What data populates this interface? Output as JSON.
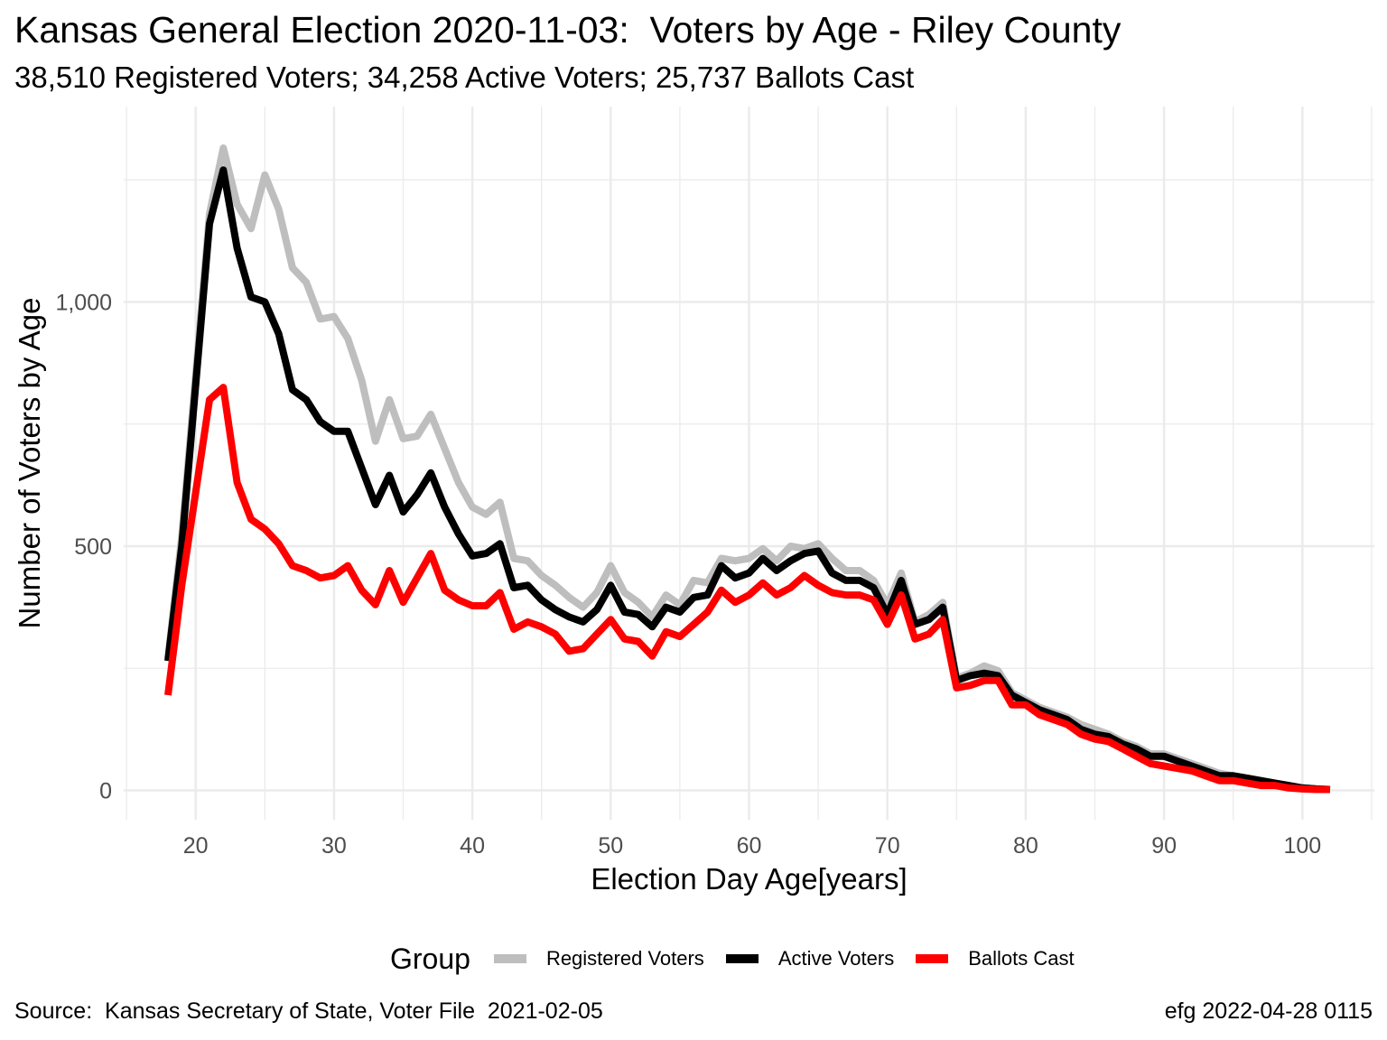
{
  "title": "Kansas General Election 2020-11-03:  Voters by Age - Riley County",
  "subtitle": "38,510 Registered Voters; 34,258 Active Voters; 25,737 Ballots Cast",
  "caption_left": "Source:  Kansas Secretary of State, Voter File  2021-02-05",
  "caption_right": "efg 2022-04-28 0115",
  "legend_title": "Group",
  "colors": {
    "registered": "#bebebe",
    "active": "#000000",
    "ballots": "#ff0000",
    "grid": "#ebebeb",
    "tick_text": "#4d4d4d"
  },
  "chart_data": {
    "type": "line",
    "xlabel": "Election Day Age[years]",
    "ylabel": "Number of Voters by Age",
    "xlim": [
      14.8,
      105.2
    ],
    "ylim": [
      -60,
      1400
    ],
    "x_ticks": [
      20,
      30,
      40,
      50,
      60,
      70,
      80,
      90,
      100
    ],
    "x_tick_labels": [
      "20",
      "30",
      "40",
      "50",
      "60",
      "70",
      "80",
      "90",
      "100"
    ],
    "y_ticks": [
      0,
      500,
      1000
    ],
    "y_tick_labels": [
      "0",
      "500",
      "1,000"
    ],
    "grid": true,
    "legend_position": "bottom",
    "x": [
      18,
      19,
      20,
      21,
      22,
      23,
      24,
      25,
      26,
      27,
      28,
      29,
      30,
      31,
      32,
      33,
      34,
      35,
      36,
      37,
      38,
      39,
      40,
      41,
      42,
      43,
      44,
      45,
      46,
      47,
      48,
      49,
      50,
      51,
      52,
      53,
      54,
      55,
      56,
      57,
      58,
      59,
      60,
      61,
      62,
      63,
      64,
      65,
      66,
      67,
      68,
      69,
      70,
      71,
      72,
      73,
      74,
      75,
      76,
      77,
      78,
      79,
      80,
      81,
      82,
      83,
      84,
      85,
      86,
      87,
      88,
      89,
      90,
      91,
      92,
      93,
      94,
      95,
      96,
      97,
      98,
      99,
      100,
      101,
      102
    ],
    "series": [
      {
        "name": "Registered Voters",
        "color": "#bebebe",
        "values": [
          270,
          520,
          850,
          1180,
          1315,
          1200,
          1150,
          1260,
          1190,
          1070,
          1040,
          965,
          970,
          925,
          840,
          715,
          800,
          720,
          725,
          770,
          700,
          630,
          580,
          565,
          590,
          475,
          470,
          440,
          420,
          395,
          375,
          405,
          460,
          405,
          385,
          355,
          400,
          380,
          430,
          425,
          475,
          470,
          475,
          495,
          470,
          500,
          495,
          505,
          475,
          450,
          450,
          430,
          380,
          445,
          345,
          360,
          385,
          230,
          240,
          255,
          245,
          200,
          185,
          170,
          160,
          150,
          135,
          125,
          115,
          100,
          90,
          75,
          75,
          65,
          55,
          45,
          35,
          30,
          25,
          20,
          15,
          10,
          5,
          3,
          2
        ]
      },
      {
        "name": "Active Voters",
        "color": "#000000",
        "values": [
          265,
          500,
          830,
          1160,
          1270,
          1110,
          1010,
          1000,
          935,
          820,
          800,
          755,
          735,
          735,
          660,
          585,
          645,
          570,
          605,
          650,
          580,
          525,
          480,
          485,
          505,
          415,
          420,
          390,
          370,
          355,
          345,
          370,
          420,
          365,
          360,
          335,
          375,
          365,
          395,
          400,
          460,
          435,
          445,
          475,
          450,
          470,
          485,
          490,
          445,
          430,
          430,
          415,
          360,
          430,
          340,
          350,
          375,
          225,
          235,
          240,
          235,
          195,
          180,
          165,
          155,
          145,
          125,
          115,
          110,
          95,
          85,
          70,
          70,
          60,
          50,
          40,
          30,
          30,
          25,
          20,
          15,
          10,
          5,
          3,
          2
        ]
      },
      {
        "name": "Ballots Cast",
        "color": "#ff0000",
        "values": [
          195,
          420,
          610,
          800,
          825,
          630,
          555,
          535,
          505,
          460,
          450,
          435,
          440,
          460,
          410,
          380,
          450,
          385,
          435,
          485,
          410,
          390,
          378,
          378,
          405,
          330,
          345,
          335,
          320,
          285,
          290,
          320,
          350,
          310,
          305,
          275,
          325,
          315,
          340,
          365,
          410,
          385,
          400,
          425,
          400,
          415,
          440,
          420,
          405,
          400,
          400,
          390,
          340,
          400,
          310,
          320,
          350,
          210,
          215,
          225,
          225,
          175,
          175,
          155,
          145,
          135,
          115,
          105,
          100,
          85,
          70,
          55,
          50,
          45,
          40,
          30,
          20,
          20,
          15,
          10,
          10,
          5,
          3,
          2,
          2
        ]
      }
    ]
  }
}
